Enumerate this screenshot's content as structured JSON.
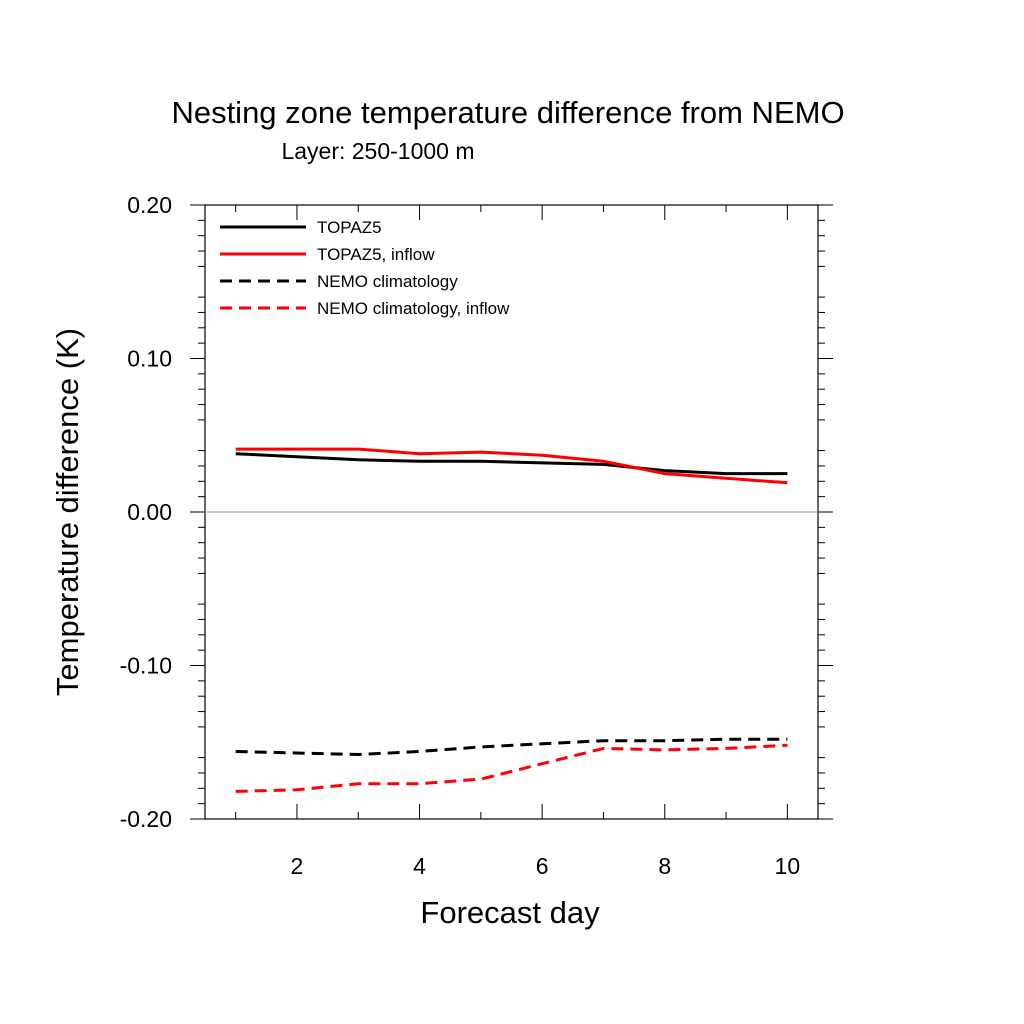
{
  "chart_data": {
    "type": "line",
    "title": "Nesting zone temperature difference from NEMO",
    "subtitle": "Layer: 250-1000 m",
    "xlabel": "Forecast day",
    "ylabel": "Temperature difference (K)",
    "xlim": [
      0.5,
      10.5
    ],
    "ylim": [
      -0.2,
      0.2
    ],
    "x_ticks": [
      2,
      4,
      6,
      8,
      10
    ],
    "x_tick_labels": [
      "2",
      "4",
      "6",
      "8",
      "10"
    ],
    "y_ticks": [
      -0.2,
      -0.1,
      0.0,
      0.1,
      0.2
    ],
    "y_tick_labels": [
      "-0.20",
      "-0.10",
      "0.00",
      "0.10",
      "0.20"
    ],
    "zero_line": true,
    "grid": false,
    "legend_position": "top-left",
    "x": [
      1,
      2,
      3,
      4,
      5,
      6,
      7,
      8,
      9,
      10
    ],
    "series": [
      {
        "name": "TOPAZ5",
        "color": "#000000",
        "dash": "solid",
        "values": [
          0.038,
          0.036,
          0.034,
          0.033,
          0.033,
          0.032,
          0.031,
          0.027,
          0.025,
          0.025
        ]
      },
      {
        "name": "TOPAZ5, inflow",
        "color": "#ff0000",
        "dash": "solid",
        "values": [
          0.041,
          0.041,
          0.041,
          0.038,
          0.039,
          0.037,
          0.033,
          0.025,
          0.022,
          0.019
        ]
      },
      {
        "name": "NEMO climatology",
        "color": "#000000",
        "dash": "dashed",
        "values": [
          -0.156,
          -0.157,
          -0.158,
          -0.156,
          -0.153,
          -0.151,
          -0.149,
          -0.149,
          -0.148,
          -0.148
        ]
      },
      {
        "name": "NEMO climatology, inflow",
        "color": "#ff0000",
        "dash": "dashed",
        "values": [
          -0.182,
          -0.181,
          -0.177,
          -0.177,
          -0.174,
          -0.164,
          -0.154,
          -0.155,
          -0.154,
          -0.152
        ]
      }
    ]
  }
}
